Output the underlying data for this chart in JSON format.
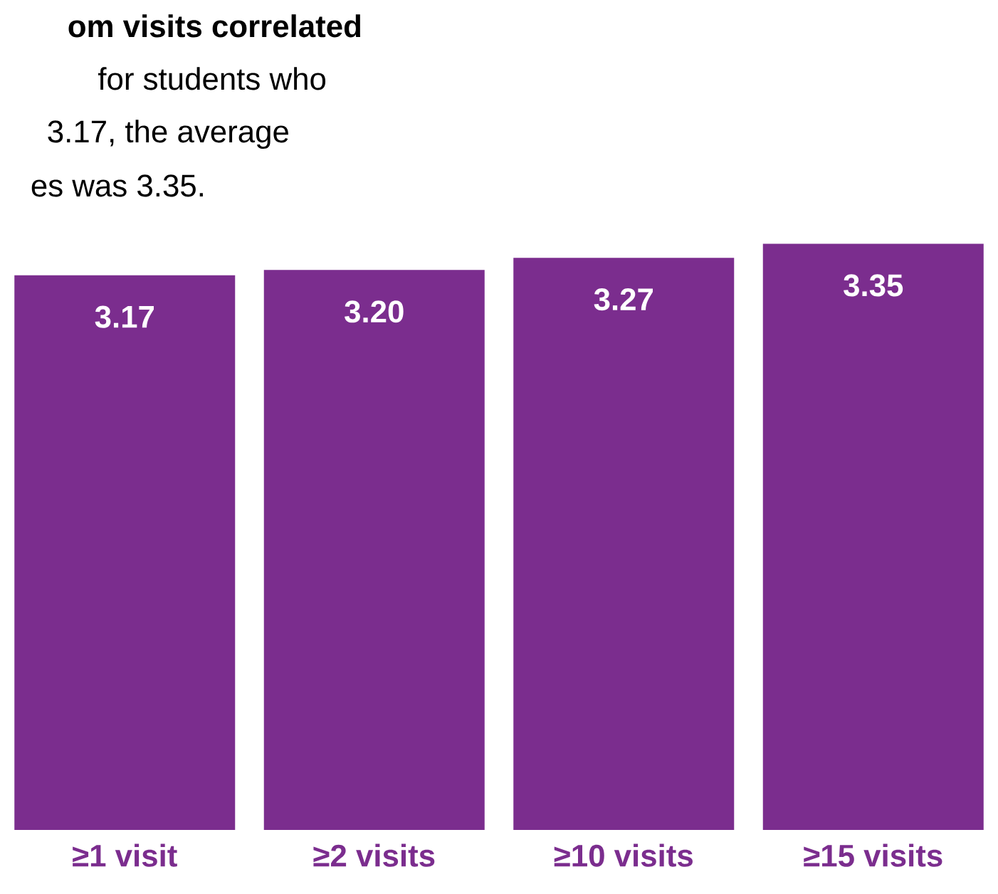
{
  "chart_data": {
    "type": "bar",
    "title": "om visits correlated",
    "annotations": [
      "for students who",
      "3.17, the average",
      "es was 3.35."
    ],
    "categories": [
      "≥1 visit",
      "≥2 visits",
      "≥10 visits",
      "≥15 visits"
    ],
    "values": [
      3.17,
      3.2,
      3.27,
      3.35
    ],
    "value_labels": [
      "3.17",
      "3.20",
      "3.27",
      "3.35"
    ],
    "color": "#7b2d8e"
  }
}
